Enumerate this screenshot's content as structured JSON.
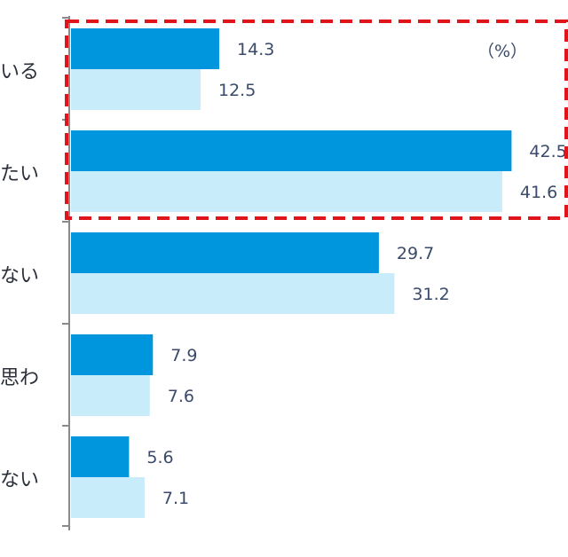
{
  "chart_data": {
    "type": "bar",
    "orientation": "horizontal",
    "unit": "（%）",
    "categories": [
      "いる",
      "たい",
      "ない",
      "思わ",
      "ない"
    ],
    "series": [
      {
        "values": [
          14.3,
          42.5,
          29.7,
          7.9,
          5.6
        ]
      },
      {
        "values": [
          12.5,
          41.6,
          31.2,
          7.6,
          7.1
        ]
      }
    ],
    "value_labels": [
      [
        "14.3",
        "42.5",
        "29.7",
        "7.9",
        "5.6"
      ],
      [
        "12.5",
        "41.6",
        "31.2",
        "7.6",
        "7.1"
      ]
    ],
    "xlim": [
      0,
      50
    ],
    "grid": false,
    "colors": {
      "series1": "#0096de",
      "series2": "#c9ecfb",
      "axis": "#8a8a8a",
      "highlight_box": "#e0141b"
    },
    "highlight": {
      "style": "dashed-box",
      "categories": [
        "いる",
        "たい"
      ]
    }
  }
}
